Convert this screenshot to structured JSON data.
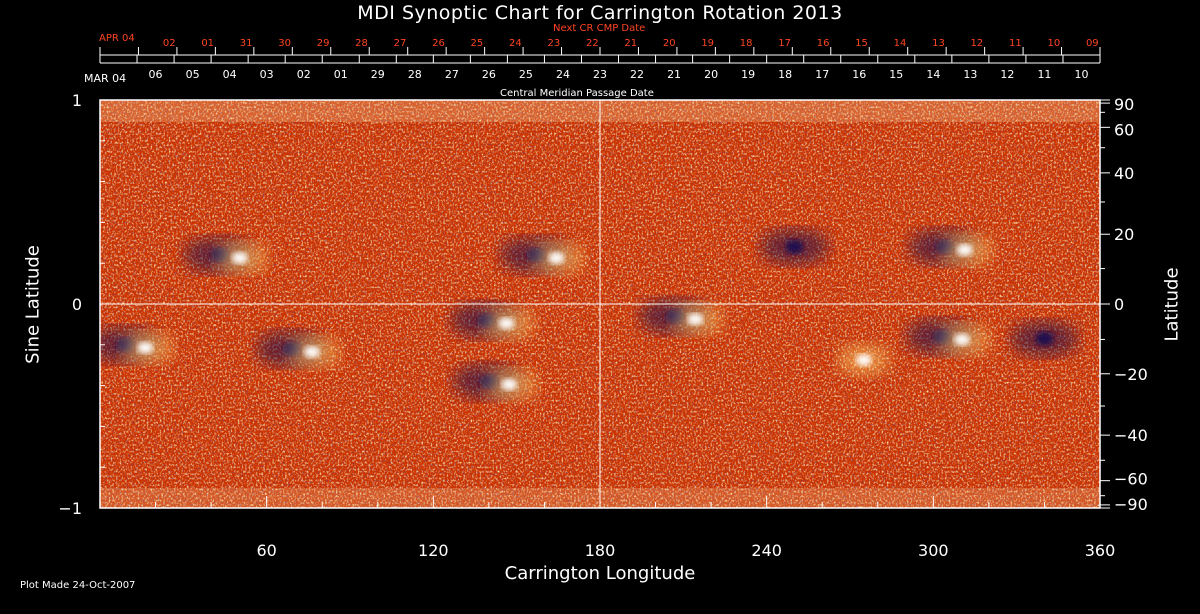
{
  "chart_data": {
    "type": "heatmap",
    "title": "MDI Synoptic Chart for Carrington Rotation 2013",
    "xlabel": "Carrington Longitude",
    "ylabel_left": "Sine Latitude",
    "ylabel_right": "Latitude",
    "xlim": [
      0,
      360
    ],
    "ylim": [
      -1,
      1
    ],
    "x_ticks": [
      60,
      120,
      180,
      240,
      300,
      360
    ],
    "y_ticks_left": [
      {
        "value": 1,
        "label": "1"
      },
      {
        "value": 0,
        "label": "0"
      },
      {
        "value": -1,
        "label": "−1"
      }
    ],
    "y_ticks_right": [
      {
        "deg": 90,
        "label": "90"
      },
      {
        "deg": 60,
        "label": "60"
      },
      {
        "deg": 40,
        "label": "40"
      },
      {
        "deg": 20,
        "label": "20"
      },
      {
        "deg": 0,
        "label": "0"
      },
      {
        "deg": -20,
        "label": "−20"
      },
      {
        "deg": -40,
        "label": "−40"
      },
      {
        "deg": -60,
        "label": "−60"
      },
      {
        "deg": -90,
        "label": "−90"
      }
    ],
    "top_axis_primary": {
      "start_label": "MAR 04",
      "label": "Central Meridian Passage Date",
      "dates": [
        "06",
        "05",
        "04",
        "03",
        "02",
        "01",
        "29",
        "28",
        "27",
        "26",
        "25",
        "24",
        "23",
        "22",
        "21",
        "20",
        "19",
        "18",
        "17",
        "16",
        "15",
        "14",
        "13",
        "12",
        "11",
        "10"
      ]
    },
    "top_axis_secondary": {
      "start_label": "APR 04",
      "label": "Next CR CMP Date",
      "dates": [
        "02",
        "01",
        "31",
        "30",
        "29",
        "28",
        "27",
        "26",
        "25",
        "24",
        "23",
        "22",
        "21",
        "20",
        "19",
        "18",
        "17",
        "16",
        "15",
        "14",
        "13",
        "12",
        "11",
        "10",
        "09"
      ]
    },
    "grid": "lines at longitude 180 and sine latitude 0",
    "colors": {
      "background": "#cc3300",
      "positive": "#ffffff",
      "negative": "#1a1050",
      "axis": "#ffffff",
      "secondary_axis": "#ff4422"
    },
    "features": [
      {
        "lon": 160,
        "sinlat": 0.24,
        "polarity": "bipolar"
      },
      {
        "lon": 142,
        "sinlat": -0.08,
        "polarity": "bipolar"
      },
      {
        "lon": 72,
        "sinlat": -0.22,
        "polarity": "bipolar"
      },
      {
        "lon": 46,
        "sinlat": 0.24,
        "polarity": "bipolar"
      },
      {
        "lon": 12,
        "sinlat": -0.2,
        "polarity": "bipolar"
      },
      {
        "lon": 306,
        "sinlat": -0.16,
        "polarity": "bipolar"
      },
      {
        "lon": 307,
        "sinlat": 0.28,
        "polarity": "bipolar"
      },
      {
        "lon": 275,
        "sinlat": -0.26,
        "polarity": "positive"
      },
      {
        "lon": 250,
        "sinlat": 0.28,
        "polarity": "negative"
      },
      {
        "lon": 210,
        "sinlat": -0.06,
        "polarity": "bipolar"
      },
      {
        "lon": 340,
        "sinlat": -0.17,
        "polarity": "negative"
      },
      {
        "lon": 143,
        "sinlat": -0.38,
        "polarity": "bipolar"
      }
    ]
  },
  "footer": "Plot Made 24-Oct-2007"
}
